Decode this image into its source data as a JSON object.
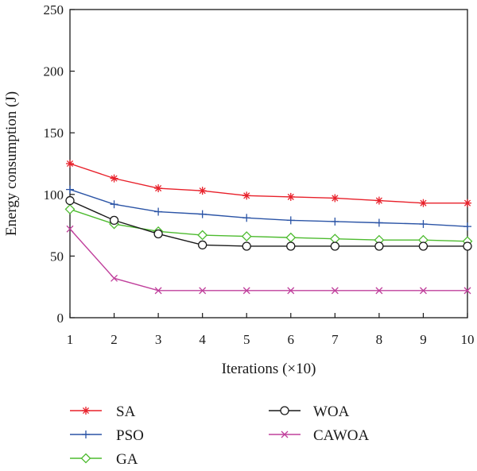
{
  "chart_data": {
    "type": "line",
    "title": "",
    "xlabel": "Iterations (×10)",
    "ylabel": "Energy consumption (J)",
    "xlim": [
      1,
      10
    ],
    "ylim": [
      0,
      250
    ],
    "x": [
      1,
      2,
      3,
      4,
      5,
      6,
      7,
      8,
      9,
      10
    ],
    "xticks": [
      "1",
      "2",
      "3",
      "4",
      "5",
      "6",
      "7",
      "8",
      "9",
      "10"
    ],
    "yticks": [
      "0",
      "50",
      "100",
      "150",
      "200",
      "250"
    ],
    "grid": false,
    "legend_position": "bottom",
    "series": [
      {
        "name": "SA",
        "color": "#e8202a",
        "marker": "asterisk",
        "values": [
          125,
          113,
          105,
          103,
          99,
          98,
          97,
          95,
          93,
          93
        ]
      },
      {
        "name": "PSO",
        "color": "#2b54a6",
        "marker": "plus",
        "values": [
          104,
          92,
          86,
          84,
          81,
          79,
          78,
          77,
          76,
          74
        ]
      },
      {
        "name": "GA",
        "color": "#4dbb2f",
        "marker": "diamond",
        "values": [
          88,
          76,
          70,
          67,
          66,
          65,
          64,
          63,
          63,
          62
        ]
      },
      {
        "name": "WOA",
        "color": "#1a1a1a",
        "marker": "circle",
        "values": [
          95,
          79,
          68,
          59,
          58,
          58,
          58,
          58,
          58,
          58
        ]
      },
      {
        "name": "CAWOA",
        "color": "#c0409c",
        "marker": "x",
        "values": [
          72,
          32,
          22,
          22,
          22,
          22,
          22,
          22,
          22,
          22
        ]
      }
    ]
  }
}
